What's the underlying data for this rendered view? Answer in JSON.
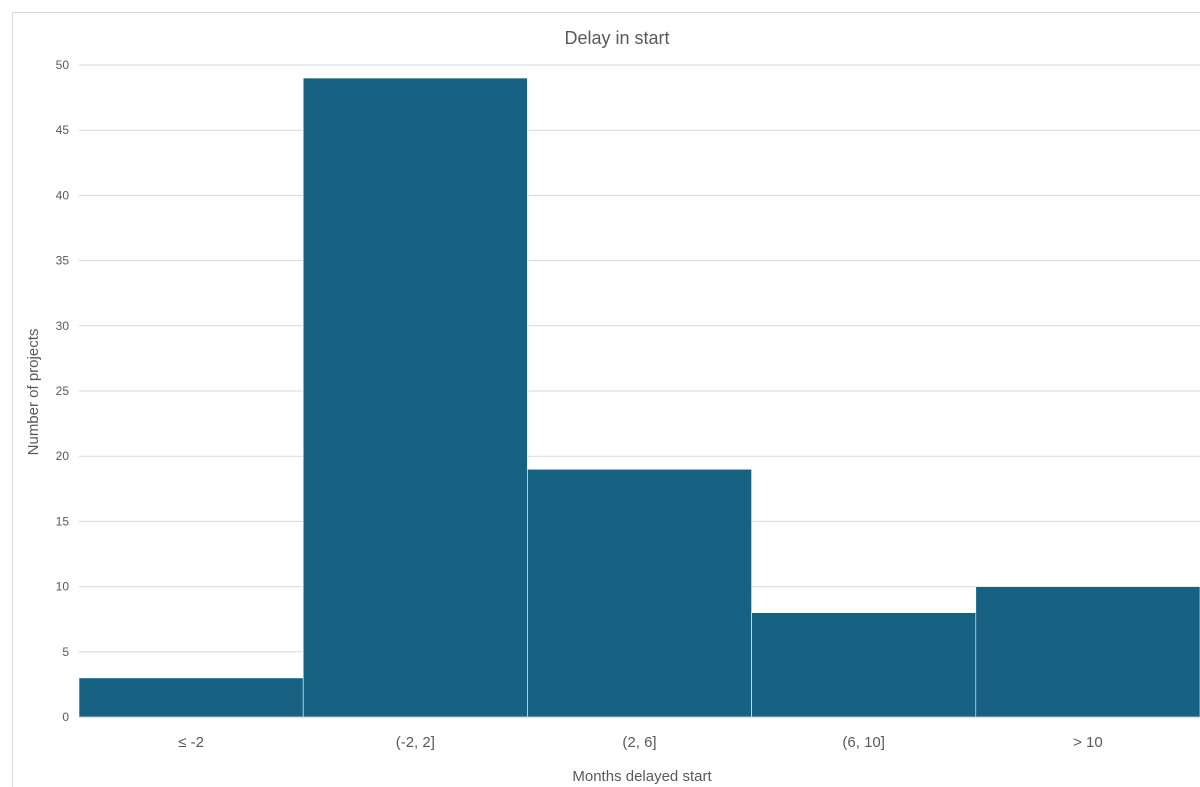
{
  "chart_data": {
    "type": "bar",
    "title": "Delay in start",
    "xlabel": "Months delayed start",
    "ylabel": "Number of projects",
    "categories": [
      "≤ -2",
      "(-2, 2]",
      "(2, 6]",
      "(6, 10]",
      "> 10"
    ],
    "values": [
      3,
      49,
      19,
      8,
      10
    ],
    "ylim": [
      0,
      50
    ],
    "yticks": [
      0,
      5,
      10,
      15,
      20,
      25,
      30,
      35,
      40,
      45,
      50
    ],
    "grid": true,
    "legend": "none",
    "bar_color": "#176183"
  }
}
